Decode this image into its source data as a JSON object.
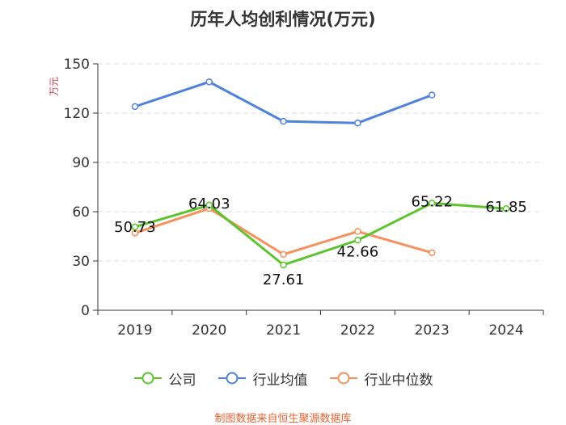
{
  "chart_data": {
    "type": "line",
    "title": "历年人均创利情况(万元)",
    "ylabel": "万元",
    "xlabel": "",
    "categories": [
      "2019",
      "2020",
      "2021",
      "2022",
      "2023",
      "2024"
    ],
    "ylim": [
      0,
      150
    ],
    "yticks": [
      0,
      30,
      60,
      90,
      120,
      150
    ],
    "grid": true,
    "legend_position": "bottom",
    "series": [
      {
        "name": "公司",
        "color": "#5cc32f",
        "values": [
          50.73,
          64.03,
          27.61,
          42.66,
          65.22,
          61.85
        ],
        "data_labels": [
          "50.73",
          "64.03",
          "27.61",
          "42.66",
          "65.22",
          "61.85"
        ]
      },
      {
        "name": "行业均值",
        "color": "#4f82dc",
        "values": [
          124,
          139,
          115,
          114,
          131,
          null
        ]
      },
      {
        "name": "行业中位数",
        "color": "#f5915c",
        "values": [
          47,
          62,
          34,
          48,
          35,
          null
        ]
      }
    ]
  },
  "footer": "制图数据来自恒生聚源数据库"
}
